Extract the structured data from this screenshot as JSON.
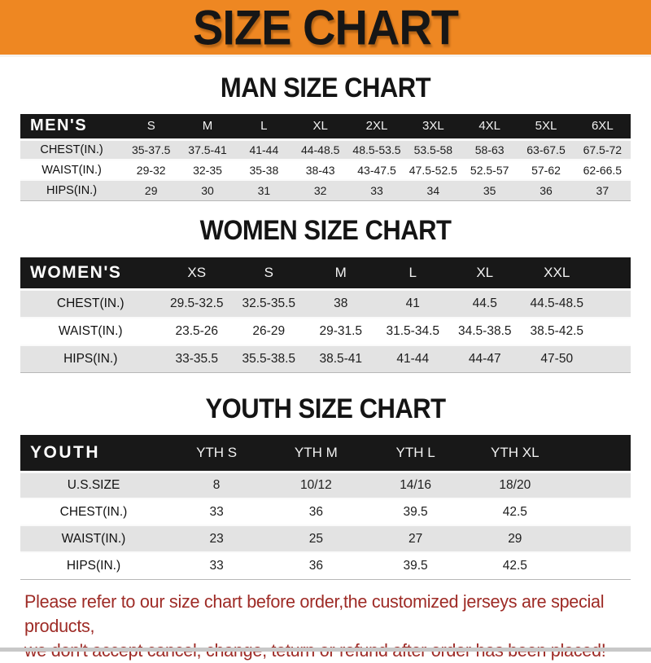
{
  "banner": {
    "title": "SIZE CHART",
    "bg_color": "#ee8722",
    "text_color": "#161616"
  },
  "sections": [
    {
      "heading": "MAN SIZE CHART",
      "table": {
        "corner_label": "MEN'S",
        "columns": [
          "S",
          "M",
          "L",
          "XL",
          "2XL",
          "3XL",
          "4XL",
          "5XL",
          "6XL"
        ],
        "rows": [
          {
            "label": "CHEST(IN.)",
            "values": [
              "35-37.5",
              "37.5-41",
              "41-44",
              "44-48.5",
              "48.5-53.5",
              "53.5-58",
              "58-63",
              "63-67.5",
              "67.5-72"
            ]
          },
          {
            "label": "WAIST(IN.)",
            "values": [
              "29-32",
              "32-35",
              "35-38",
              "38-43",
              "43-47.5",
              "47.5-52.5",
              "52.5-57",
              "57-62",
              "62-66.5"
            ]
          },
          {
            "label": "HIPS(IN.)",
            "values": [
              "29",
              "30",
              "31",
              "32",
              "33",
              "34",
              "35",
              "36",
              "37"
            ]
          }
        ]
      }
    },
    {
      "heading": "WOMEN SIZE CHART",
      "table": {
        "corner_label": "WOMEN'S",
        "columns": [
          "XS",
          "S",
          "M",
          "L",
          "XL",
          "XXL"
        ],
        "rows": [
          {
            "label": "CHEST(IN.)",
            "values": [
              "29.5-32.5",
              "32.5-35.5",
              "38",
              "41",
              "44.5",
              "44.5-48.5"
            ]
          },
          {
            "label": "WAIST(IN.)",
            "values": [
              "23.5-26",
              "26-29",
              "29-31.5",
              "31.5-34.5",
              "34.5-38.5",
              "38.5-42.5"
            ]
          },
          {
            "label": "HIPS(IN.)",
            "values": [
              "33-35.5",
              "35.5-38.5",
              "38.5-41",
              "41-44",
              "44-47",
              "47-50"
            ]
          }
        ]
      }
    },
    {
      "heading": "YOUTH SIZE CHART",
      "table": {
        "corner_label": "YOUTH",
        "columns": [
          "YTH S",
          "YTH M",
          "YTH L",
          "YTH XL"
        ],
        "rows": [
          {
            "label": "U.S.SIZE",
            "values": [
              "8",
              "10/12",
              "14/16",
              "18/20"
            ]
          },
          {
            "label": "CHEST(IN.)",
            "values": [
              "33",
              "36",
              "39.5",
              "42.5"
            ]
          },
          {
            "label": "WAIST(IN.)",
            "values": [
              "23",
              "25",
              "27",
              "29"
            ]
          },
          {
            "label": "HIPS(IN.)",
            "values": [
              "33",
              "36",
              "39.5",
              "42.5"
            ]
          }
        ]
      }
    }
  ],
  "footer": {
    "line1": "Please refer to our size chart before order,the customized jerseys are special products,",
    "line2": "we don't accept cancel, change, teturn or refund after order has been placed!",
    "text_color": "#9e2b26"
  }
}
